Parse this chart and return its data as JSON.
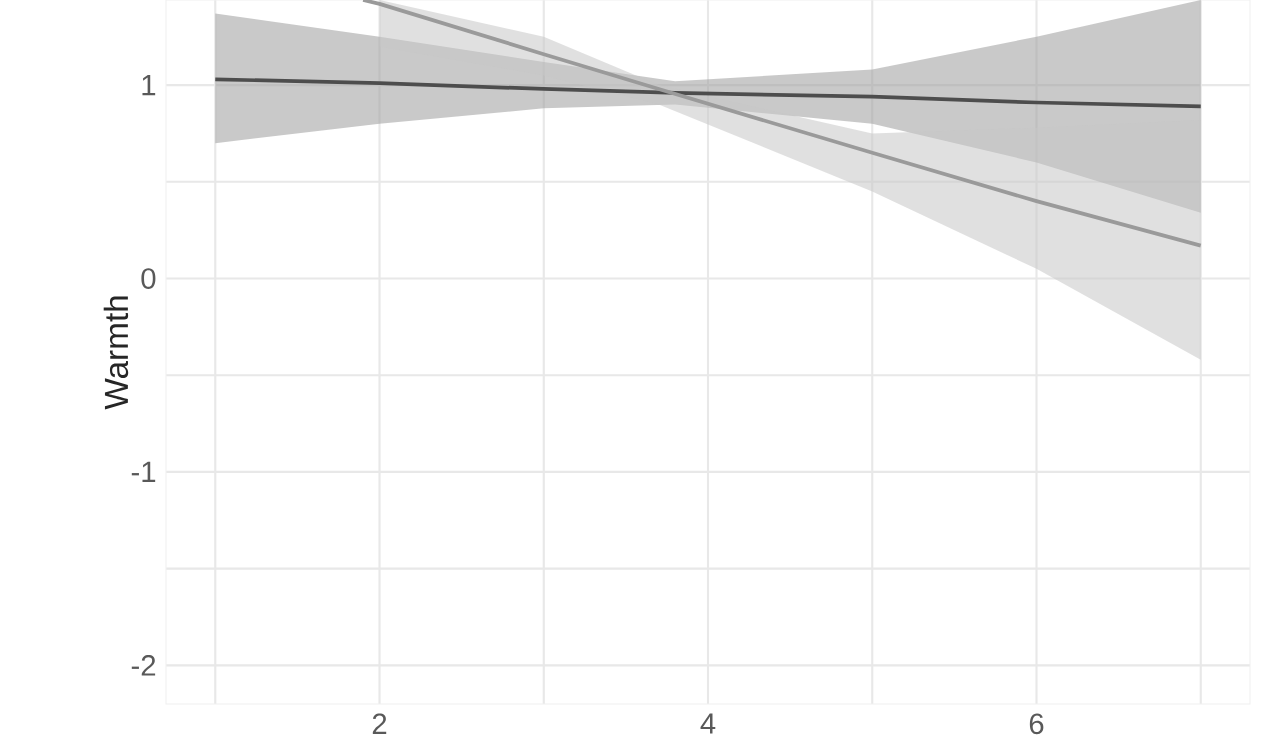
{
  "chart_data": {
    "type": "line",
    "ylabel": "Warmth",
    "xlim": [
      0.7,
      7.3
    ],
    "ylim": [
      -2.2,
      1.44
    ],
    "xticks": [
      {
        "value": 1,
        "label": null
      },
      2,
      {
        "value": 3,
        "label": null
      },
      4,
      {
        "value": 5,
        "label": null
      },
      6,
      {
        "value": 7,
        "label": null
      }
    ],
    "yticks": [
      -2,
      {
        "value": -1.5,
        "label": null
      },
      -1,
      {
        "value": -0.5,
        "label": null
      },
      0,
      {
        "value": 0.5,
        "label": null
      },
      1
    ],
    "grid": true,
    "line_style": "solid",
    "marker": "none",
    "series": [
      {
        "color": "#4d4d4d",
        "x": [
          1,
          2,
          3,
          3.8,
          5,
          6,
          7
        ],
        "values": [
          1.03,
          1.01,
          0.98,
          0.96,
          0.94,
          0.91,
          0.89
        ],
        "lower": [
          0.7,
          0.8,
          0.88,
          0.9,
          0.8,
          0.6,
          0.34
        ],
        "upper": [
          1.37,
          1.25,
          1.12,
          1.02,
          1.08,
          1.25,
          1.44
        ]
      },
      {
        "color": "#9a9a9a",
        "x": [
          1.9,
          2,
          3,
          3.7,
          5,
          6,
          7
        ],
        "values": [
          1.44,
          1.42,
          1.16,
          0.98,
          0.65,
          0.4,
          0.17
        ],
        "lower": [
          null,
          1.2,
          1.05,
          0.9,
          0.45,
          0.05,
          -0.42
        ],
        "upper": [
          null,
          1.44,
          1.25,
          1.0,
          0.75,
          0.78,
          0.82
        ]
      }
    ]
  }
}
